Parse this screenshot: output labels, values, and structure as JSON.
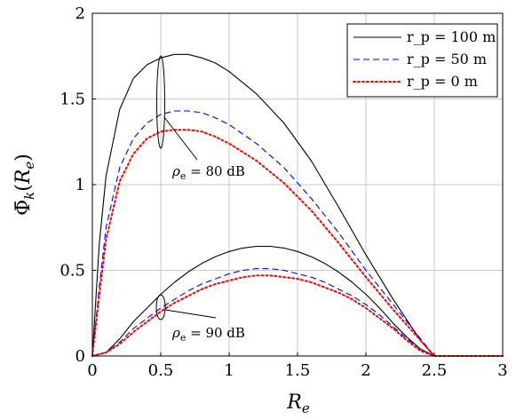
{
  "chart_data": {
    "type": "line",
    "xlabel": "R_e",
    "ylabel": "Φ̄_k(R_e)",
    "xlim": [
      0,
      3
    ],
    "ylim": [
      0,
      2
    ],
    "x_ticks": [
      "0",
      "0.5",
      "1",
      "1.5",
      "2",
      "2.5",
      "3"
    ],
    "y_ticks": [
      "0",
      "0.5",
      "1",
      "1.5",
      "2"
    ],
    "grid": true,
    "legend_position": "top-right",
    "legend": [
      {
        "label": "r_p = 100 m",
        "color": "#000000",
        "dash": "solid"
      },
      {
        "label": "r_p =   50 m",
        "color": "#0000ff",
        "dash": "dashed"
      },
      {
        "label": "r_p =     0 m",
        "color": "#ff0000",
        "dash": "dotted"
      }
    ],
    "annotations": [
      "ρ_e = 80 dB",
      "ρ_e = 90 dB"
    ],
    "series": [
      {
        "name": "r_p = 100 m",
        "group": "ρ_e = 80 dB",
        "color": "#000000",
        "dash": "solid",
        "x": [
          0,
          0.05,
          0.1,
          0.2,
          0.3,
          0.4,
          0.5,
          0.6,
          0.7,
          0.8,
          0.9,
          1.0,
          1.2,
          1.4,
          1.6,
          1.8,
          2.0,
          2.2,
          2.4,
          2.5,
          3.0
        ],
        "y": [
          0,
          0.65,
          1.05,
          1.44,
          1.62,
          1.7,
          1.74,
          1.76,
          1.76,
          1.74,
          1.71,
          1.66,
          1.53,
          1.36,
          1.14,
          0.87,
          0.59,
          0.33,
          0.09,
          0,
          0
        ]
      },
      {
        "name": "r_p = 50 m",
        "group": "ρ_e = 80 dB",
        "color": "#0000ff",
        "dash": "dashed",
        "x": [
          0,
          0.05,
          0.1,
          0.2,
          0.3,
          0.4,
          0.5,
          0.6,
          0.7,
          0.8,
          0.9,
          1.0,
          1.2,
          1.4,
          1.6,
          1.8,
          2.0,
          2.2,
          2.4,
          2.5,
          3.0
        ],
        "y": [
          0,
          0.4,
          0.75,
          1.1,
          1.27,
          1.36,
          1.41,
          1.43,
          1.43,
          1.42,
          1.39,
          1.35,
          1.24,
          1.1,
          0.92,
          0.72,
          0.5,
          0.3,
          0.1,
          0,
          0
        ]
      },
      {
        "name": "r_p = 0 m",
        "group": "ρ_e = 80 dB",
        "color": "#ff0000",
        "dash": "dotted",
        "x": [
          0,
          0.05,
          0.1,
          0.2,
          0.3,
          0.4,
          0.5,
          0.6,
          0.7,
          0.8,
          0.9,
          1.0,
          1.2,
          1.4,
          1.6,
          1.8,
          2.0,
          2.2,
          2.4,
          2.5,
          3.0
        ],
        "y": [
          0,
          0.35,
          0.68,
          1.02,
          1.18,
          1.27,
          1.31,
          1.32,
          1.32,
          1.31,
          1.28,
          1.24,
          1.14,
          1.01,
          0.85,
          0.66,
          0.46,
          0.27,
          0.09,
          0,
          0
        ]
      },
      {
        "name": "r_p = 100 m",
        "group": "ρ_e = 90 dB",
        "color": "#000000",
        "dash": "solid",
        "x": [
          0,
          0.1,
          0.2,
          0.3,
          0.4,
          0.5,
          0.6,
          0.7,
          0.8,
          0.9,
          1.0,
          1.1,
          1.2,
          1.3,
          1.4,
          1.5,
          1.6,
          1.7,
          1.8,
          1.9,
          2.0,
          2.1,
          2.2,
          2.3,
          2.4,
          2.5,
          3.0
        ],
        "y": [
          0,
          0.02,
          0.1,
          0.2,
          0.28,
          0.36,
          0.43,
          0.49,
          0.54,
          0.58,
          0.61,
          0.63,
          0.64,
          0.64,
          0.63,
          0.61,
          0.58,
          0.54,
          0.49,
          0.43,
          0.36,
          0.28,
          0.19,
          0.11,
          0.04,
          0,
          0
        ]
      },
      {
        "name": "r_p = 50 m",
        "group": "ρ_e = 90 dB",
        "color": "#0000ff",
        "dash": "dashed",
        "x": [
          0,
          0.1,
          0.2,
          0.3,
          0.4,
          0.5,
          0.6,
          0.7,
          0.8,
          0.9,
          1.0,
          1.1,
          1.2,
          1.3,
          1.4,
          1.5,
          1.6,
          1.7,
          1.8,
          1.9,
          2.0,
          2.1,
          2.2,
          2.3,
          2.4,
          2.5,
          3.0
        ],
        "y": [
          0,
          0.02,
          0.08,
          0.16,
          0.22,
          0.28,
          0.33,
          0.38,
          0.42,
          0.45,
          0.48,
          0.5,
          0.51,
          0.51,
          0.5,
          0.48,
          0.46,
          0.43,
          0.39,
          0.35,
          0.3,
          0.24,
          0.17,
          0.1,
          0.04,
          0,
          0
        ]
      },
      {
        "name": "r_p = 0 m",
        "group": "ρ_e = 90 dB",
        "color": "#ff0000",
        "dash": "dotted",
        "x": [
          0,
          0.1,
          0.2,
          0.3,
          0.4,
          0.5,
          0.6,
          0.7,
          0.8,
          0.9,
          1.0,
          1.1,
          1.2,
          1.3,
          1.4,
          1.5,
          1.6,
          1.7,
          1.8,
          1.9,
          2.0,
          2.1,
          2.2,
          2.3,
          2.4,
          2.5,
          3.0
        ],
        "y": [
          0,
          0.02,
          0.07,
          0.14,
          0.2,
          0.26,
          0.31,
          0.35,
          0.39,
          0.42,
          0.44,
          0.46,
          0.47,
          0.47,
          0.46,
          0.45,
          0.43,
          0.4,
          0.37,
          0.33,
          0.28,
          0.22,
          0.16,
          0.09,
          0.03,
          0,
          0
        ]
      }
    ]
  }
}
